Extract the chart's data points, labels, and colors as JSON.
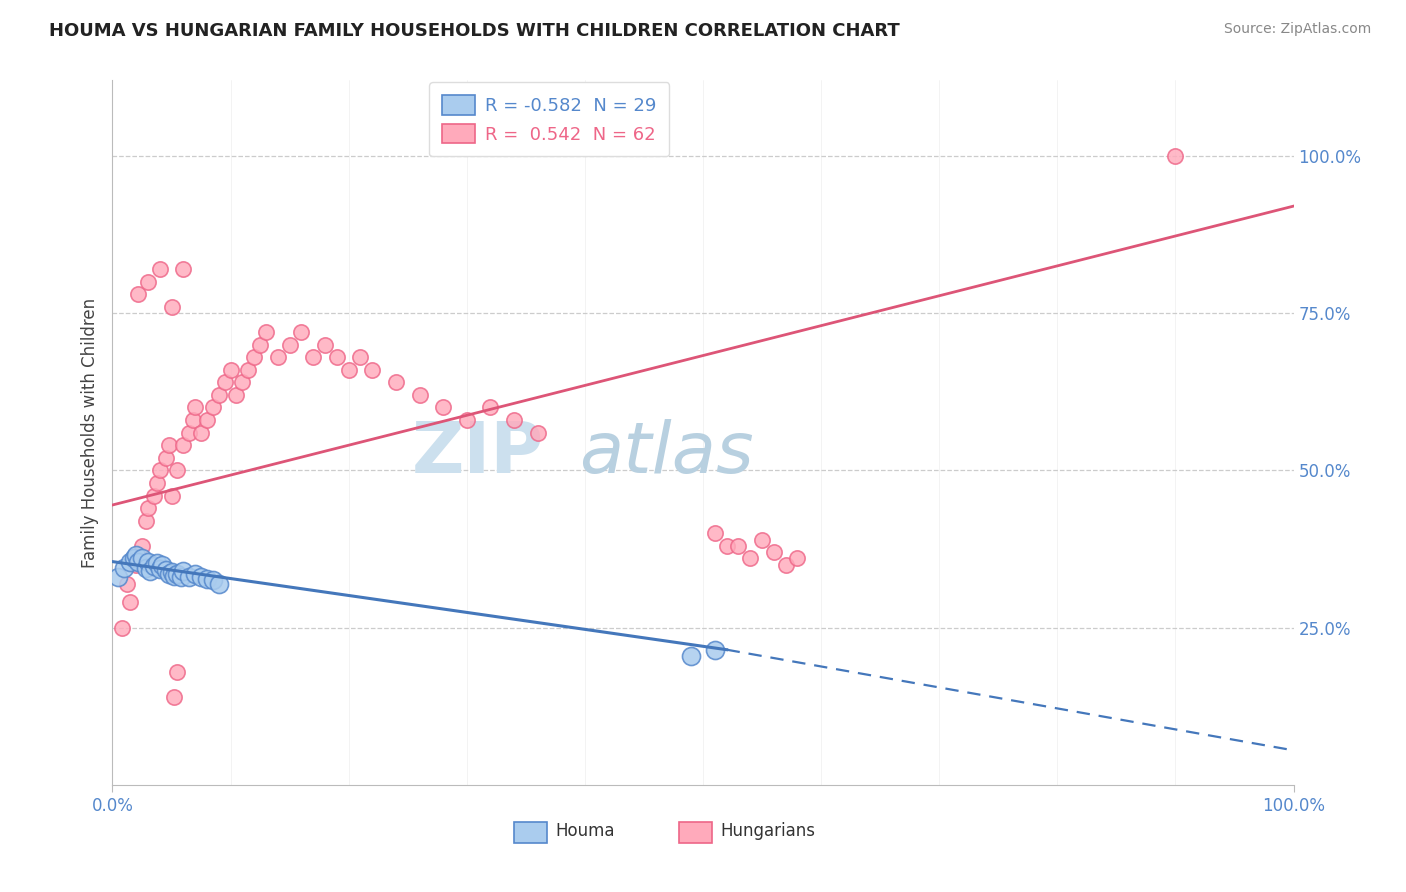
{
  "title": "HOUMA VS HUNGARIAN FAMILY HOUSEHOLDS WITH CHILDREN CORRELATION CHART",
  "source_text": "Source: ZipAtlas.com",
  "ylabel": "Family Households with Children",
  "yaxis_labels": [
    "25.0%",
    "50.0%",
    "75.0%",
    "100.0%"
  ],
  "yaxis_values": [
    0.25,
    0.5,
    0.75,
    1.0
  ],
  "legend_blue_label": "R = -0.582  N = 29",
  "legend_pink_label": "R =  0.542  N = 62",
  "legend_houma": "Houma",
  "legend_hungarians": "Hungarians",
  "blue_color": "#5588cc",
  "pink_color": "#ee6688",
  "blue_fill": "#aaccee",
  "pink_fill": "#ffaabb",
  "blue_line_color": "#4477bb",
  "pink_line_color": "#dd5577",
  "houma_x": [
    0.005,
    0.01,
    0.015,
    0.018,
    0.02,
    0.022,
    0.025,
    0.028,
    0.03,
    0.032,
    0.035,
    0.038,
    0.04,
    0.042,
    0.045,
    0.048,
    0.05,
    0.052,
    0.055,
    0.058,
    0.06,
    0.065,
    0.07,
    0.075,
    0.08,
    0.085,
    0.09,
    0.49,
    0.51
  ],
  "houma_y": [
    0.33,
    0.345,
    0.355,
    0.36,
    0.365,
    0.355,
    0.36,
    0.345,
    0.355,
    0.34,
    0.348,
    0.352,
    0.344,
    0.35,
    0.342,
    0.336,
    0.338,
    0.332,
    0.335,
    0.33,
    0.34,
    0.33,
    0.335,
    0.33,
    0.328,
    0.325,
    0.32,
    0.205,
    0.215
  ],
  "hungarian_x": [
    0.008,
    0.012,
    0.015,
    0.02,
    0.025,
    0.028,
    0.03,
    0.035,
    0.038,
    0.04,
    0.045,
    0.048,
    0.05,
    0.055,
    0.06,
    0.065,
    0.068,
    0.07,
    0.075,
    0.08,
    0.085,
    0.09,
    0.095,
    0.1,
    0.105,
    0.11,
    0.115,
    0.12,
    0.125,
    0.13,
    0.14,
    0.15,
    0.16,
    0.17,
    0.18,
    0.19,
    0.2,
    0.21,
    0.22,
    0.24,
    0.26,
    0.28,
    0.3,
    0.32,
    0.34,
    0.36,
    0.022,
    0.03,
    0.04,
    0.05,
    0.06,
    0.055,
    0.052,
    0.51,
    0.52,
    0.53,
    0.54,
    0.55,
    0.56,
    0.57,
    0.58,
    0.9
  ],
  "hungarian_y": [
    0.25,
    0.32,
    0.29,
    0.35,
    0.38,
    0.42,
    0.44,
    0.46,
    0.48,
    0.5,
    0.52,
    0.54,
    0.46,
    0.5,
    0.54,
    0.56,
    0.58,
    0.6,
    0.56,
    0.58,
    0.6,
    0.62,
    0.64,
    0.66,
    0.62,
    0.64,
    0.66,
    0.68,
    0.7,
    0.72,
    0.68,
    0.7,
    0.72,
    0.68,
    0.7,
    0.68,
    0.66,
    0.68,
    0.66,
    0.64,
    0.62,
    0.6,
    0.58,
    0.6,
    0.58,
    0.56,
    0.78,
    0.8,
    0.82,
    0.76,
    0.82,
    0.18,
    0.14,
    0.4,
    0.38,
    0.38,
    0.36,
    0.39,
    0.37,
    0.35,
    0.36,
    1.0
  ],
  "blue_line_x0": 0.0,
  "blue_line_y0": 0.355,
  "blue_line_x1": 0.52,
  "blue_line_y1": 0.215,
  "blue_line_solid_end": 0.52,
  "blue_line_dash_end": 1.0,
  "blue_line_y_dash_end": 0.055,
  "pink_line_x0": 0.0,
  "pink_line_y0": 0.445,
  "pink_line_x1": 1.0,
  "pink_line_y1": 0.92,
  "xlim": [
    0.0,
    1.0
  ],
  "ylim": [
    0.0,
    1.12
  ],
  "title_fontsize": 13,
  "source_fontsize": 10,
  "axis_label_fontsize": 12,
  "tick_fontsize": 12,
  "watermark_zip_color": "#cce0ee",
  "watermark_atlas_color": "#b8d0e0"
}
